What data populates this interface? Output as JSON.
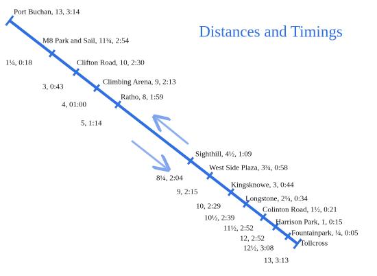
{
  "title": "Distances and Timings",
  "stops": [
    {
      "label": "Port Buchan, 13, 3:14",
      "reverse": null
    },
    {
      "label": "M8 Park and Sail, 11¾, 2:54",
      "reverse": "1¼, 0:18"
    },
    {
      "label": "Clifton Road, 10, 2:30",
      "reverse": "3, 0:43"
    },
    {
      "label": "Climbing Arena, 9, 2:13",
      "reverse": "4, 01:00"
    },
    {
      "label": "Ratho, 8, 1:59",
      "reverse": "5, 1:14"
    },
    {
      "label": "Sighthill, 4½, 1:09",
      "reverse": "8¼, 2:04"
    },
    {
      "label": "West Side Plaza, 3¾, 0:58",
      "reverse": "9, 2:15"
    },
    {
      "label": "Kingsknowe, 3, 0:44",
      "reverse": "10, 2:29"
    },
    {
      "label": "Longstone, 2¼, 0:34",
      "reverse": "10½, 2:39"
    },
    {
      "label": "Colinton Road, 1½, 0:21",
      "reverse": "11½, 2:52"
    },
    {
      "label": "Harrison Park, 1, 0:15",
      "reverse": "12, 2:52"
    },
    {
      "label": "Fountainpark, ¼, 0:05",
      "reverse": "12½, 3:08"
    },
    {
      "label": "Tollcross",
      "reverse": "13, 3:13"
    }
  ]
}
